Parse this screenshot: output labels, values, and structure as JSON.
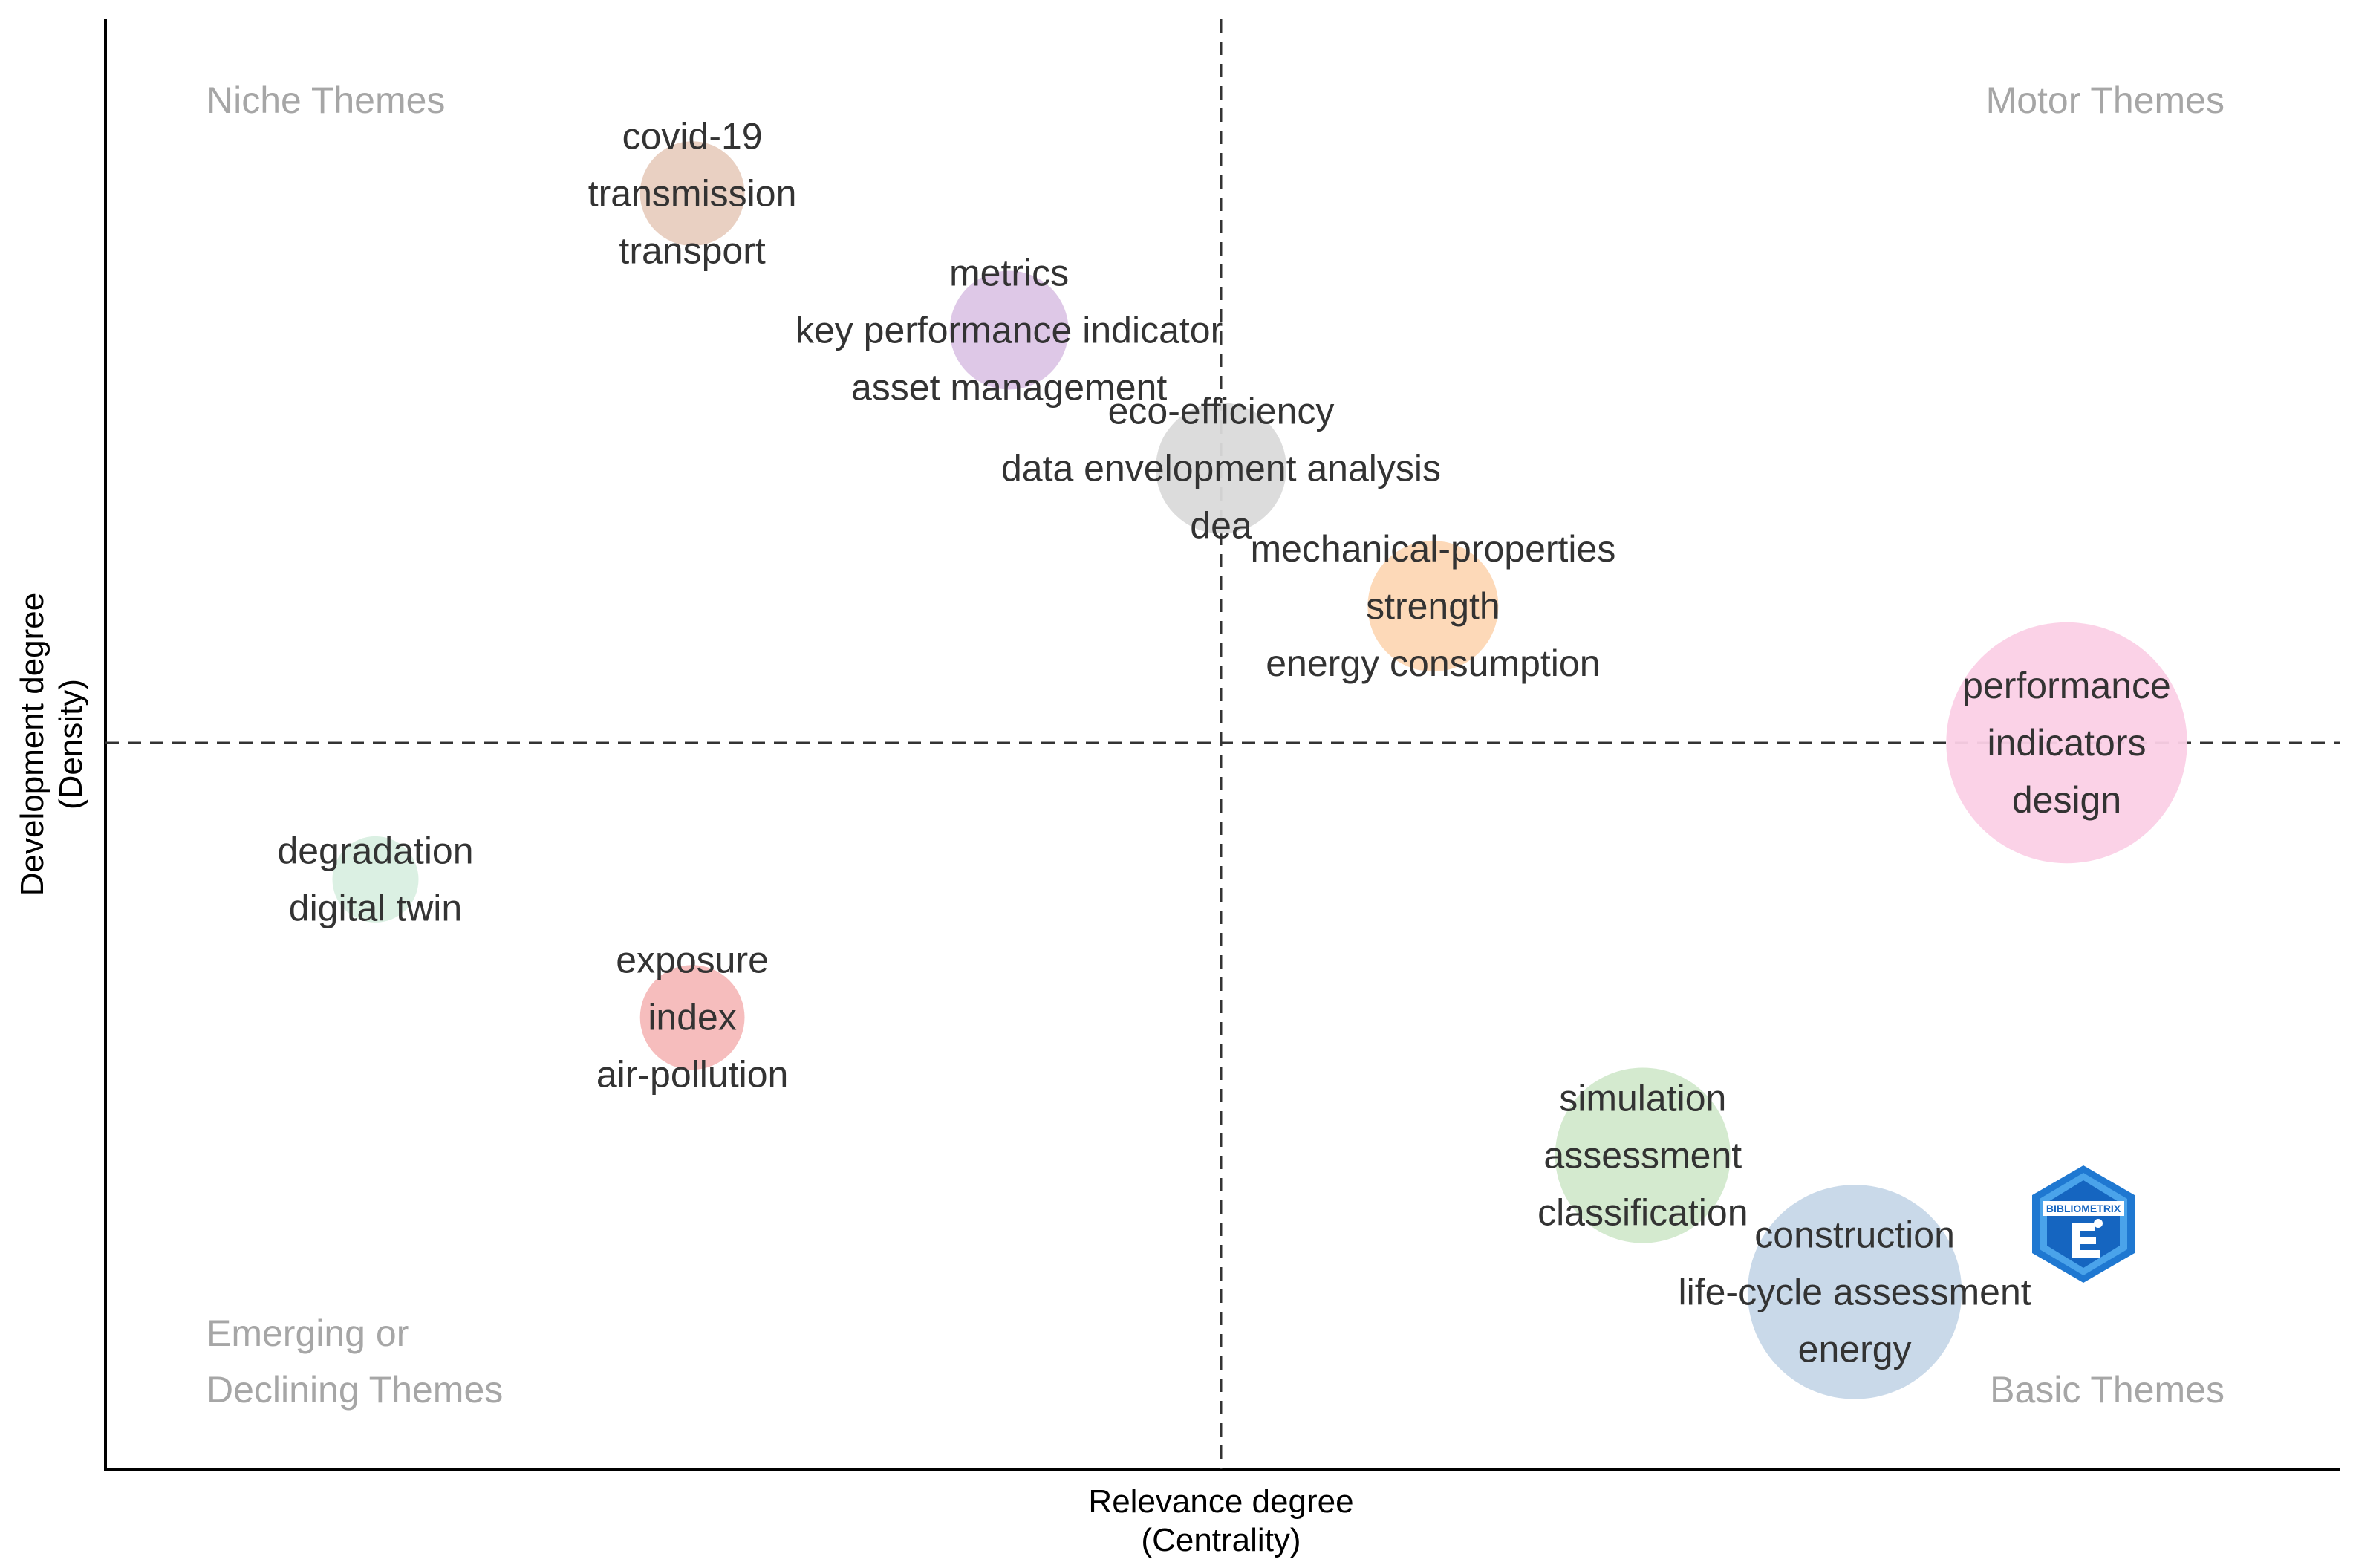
{
  "chart_data": {
    "type": "scatter",
    "subtype": "thematic-map",
    "xlabel": "Relevance degree",
    "xlabel_sub": "(Centrality)",
    "ylabel": "Development degree",
    "ylabel_sub": "(Density)",
    "xlim": [
      0,
      1
    ],
    "ylim": [
      0,
      1
    ],
    "x_threshold": 0.5,
    "y_threshold": 0.5,
    "quadrants": {
      "top_left": [
        "Niche Themes"
      ],
      "top_right": [
        "Motor Themes"
      ],
      "bottom_left": [
        "Emerging or",
        "Declining Themes"
      ],
      "bottom_right": [
        "Basic Themes"
      ]
    },
    "clusters": [
      {
        "name": "covid-19",
        "keywords": [
          "covid-19",
          "transmission",
          "transport"
        ],
        "x": 0.263,
        "y": 0.878,
        "size": 2,
        "color": "#e8cdbf"
      },
      {
        "name": "metrics",
        "keywords": [
          "metrics",
          "key performance indicator",
          "asset management"
        ],
        "x": 0.405,
        "y": 0.784,
        "size": 3,
        "color": "#dcc5e6"
      },
      {
        "name": "eco-efficiency",
        "keywords": [
          "eco-efficiency",
          "data envelopment analysis",
          "dea"
        ],
        "x": 0.5,
        "y": 0.689,
        "size": 4,
        "color": "#dadada"
      },
      {
        "name": "mechanical-properties",
        "keywords": [
          "mechanical-properties",
          "strength",
          "energy consumption"
        ],
        "x": 0.595,
        "y": 0.594,
        "size": 4,
        "color": "#fdd7b4"
      },
      {
        "name": "performance",
        "keywords": [
          "performance",
          "indicators",
          "design"
        ],
        "x": 0.879,
        "y": 0.5,
        "size": 20,
        "color": "#fbd0e6"
      },
      {
        "name": "degradation",
        "keywords": [
          "degradation",
          "digital twin"
        ],
        "x": 0.121,
        "y": 0.406,
        "size": 1,
        "color": "#d9efe2"
      },
      {
        "name": "exposure",
        "keywords": [
          "exposure",
          "index",
          "air-pollution"
        ],
        "x": 0.263,
        "y": 0.311,
        "size": 2,
        "color": "#f5b9b9"
      },
      {
        "name": "simulation",
        "keywords": [
          "simulation",
          "assessment",
          "classification"
        ],
        "x": 0.689,
        "y": 0.216,
        "size": 9,
        "color": "#d2e9cc"
      },
      {
        "name": "construction",
        "keywords": [
          "construction",
          "life-cycle assessment",
          "energy"
        ],
        "x": 0.784,
        "y": 0.122,
        "size": 15,
        "color": "#c6d7e8"
      }
    ]
  },
  "logo": {
    "text": "BIBLIOMETRIX"
  }
}
